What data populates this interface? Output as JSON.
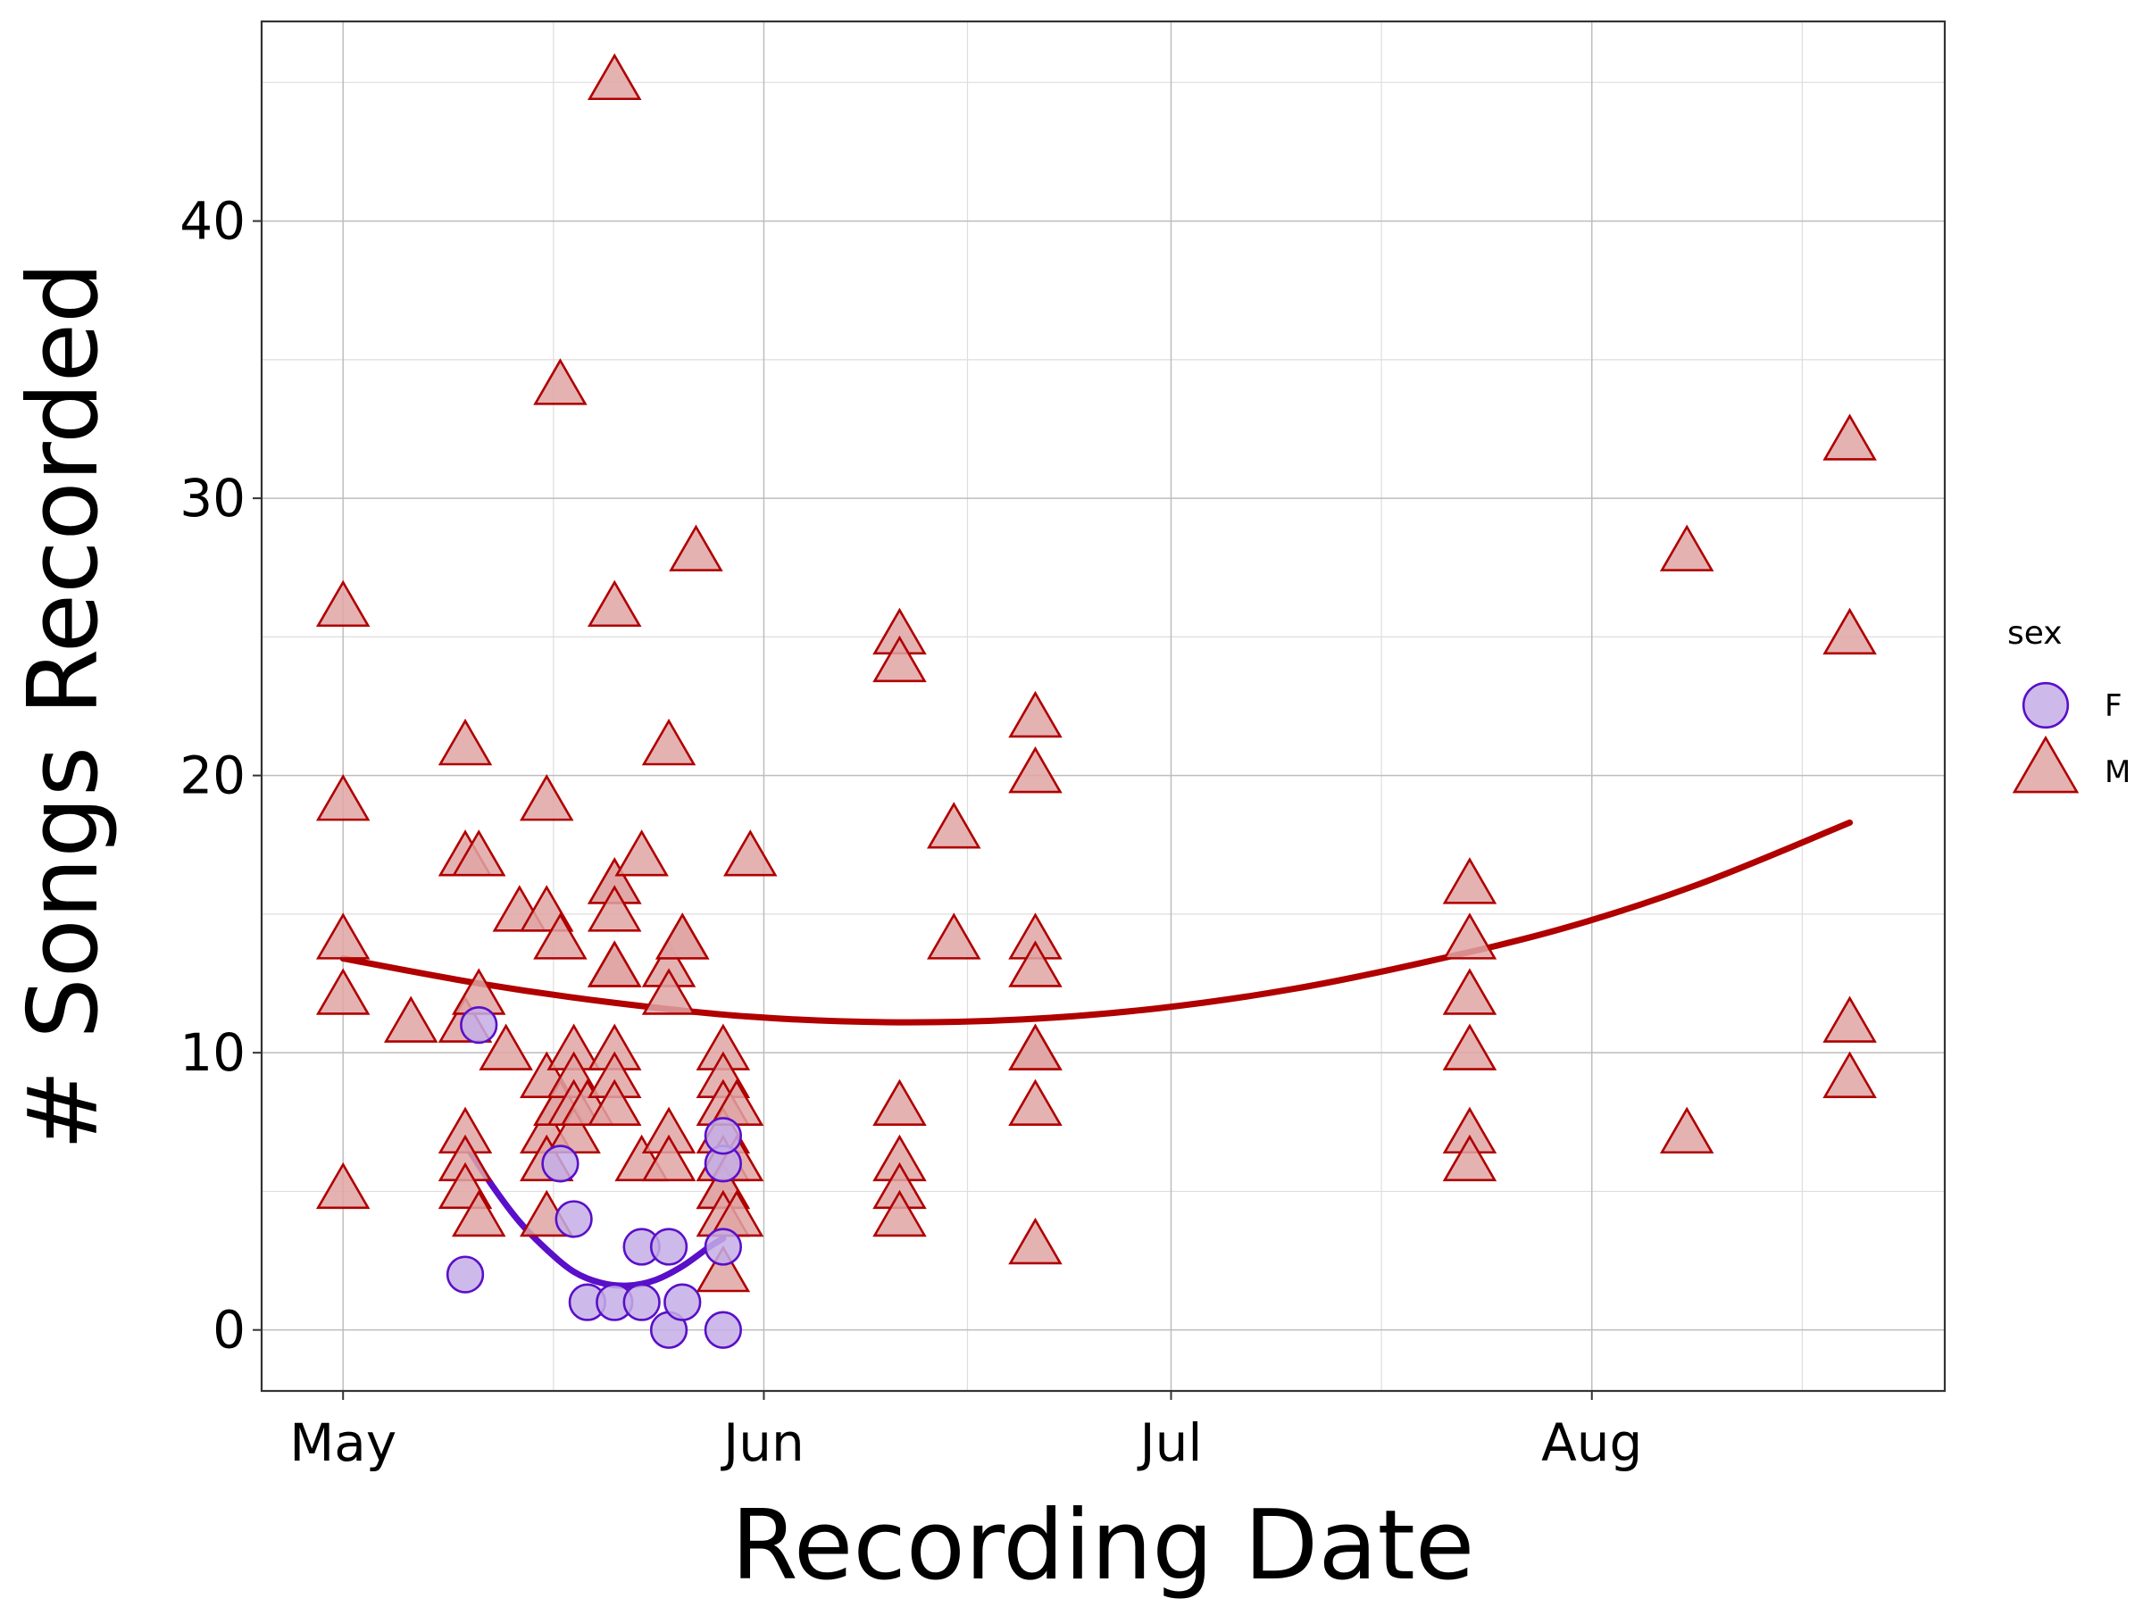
{
  "chart_data": {
    "type": "scatter",
    "xlabel": "Recording Date",
    "ylabel": "# Songs Recorded",
    "x_type": "date",
    "x_ticks": [
      {
        "date": "2021-05-01",
        "label": "May"
      },
      {
        "date": "2021-06-01",
        "label": "Jun"
      },
      {
        "date": "2021-07-01",
        "label": "Jul"
      },
      {
        "date": "2021-08-01",
        "label": "Aug"
      }
    ],
    "xlim": [
      "2021-04-25",
      "2021-08-27"
    ],
    "y_ticks": [
      0,
      10,
      20,
      30,
      40
    ],
    "ylim": [
      -2.2,
      47.2
    ],
    "grid": true,
    "legend": {
      "title": "sex",
      "position": "right"
    },
    "series": [
      {
        "name": "F",
        "color": "#5a0fc8",
        "fill": "#c4aee6",
        "shape": "circle",
        "points": [
          {
            "x": "2021-05-10",
            "y": 2
          },
          {
            "x": "2021-05-11",
            "y": 11
          },
          {
            "x": "2021-05-17",
            "y": 6
          },
          {
            "x": "2021-05-18",
            "y": 4
          },
          {
            "x": "2021-05-19",
            "y": 1
          },
          {
            "x": "2021-05-21",
            "y": 1
          },
          {
            "x": "2021-05-23",
            "y": 1
          },
          {
            "x": "2021-05-23",
            "y": 3
          },
          {
            "x": "2021-05-25",
            "y": 0
          },
          {
            "x": "2021-05-25",
            "y": 3
          },
          {
            "x": "2021-05-26",
            "y": 1
          },
          {
            "x": "2021-05-29",
            "y": 0
          },
          {
            "x": "2021-05-29",
            "y": 3
          },
          {
            "x": "2021-05-29",
            "y": 6
          },
          {
            "x": "2021-05-29",
            "y": 7
          }
        ],
        "trend": [
          {
            "x": "2021-05-10",
            "y": 6.7
          },
          {
            "x": "2021-05-12",
            "y": 5.2
          },
          {
            "x": "2021-05-14",
            "y": 3.9
          },
          {
            "x": "2021-05-16",
            "y": 2.9
          },
          {
            "x": "2021-05-18",
            "y": 2.1
          },
          {
            "x": "2021-05-20",
            "y": 1.7
          },
          {
            "x": "2021-05-22",
            "y": 1.6
          },
          {
            "x": "2021-05-24",
            "y": 1.8
          },
          {
            "x": "2021-05-26",
            "y": 2.3
          },
          {
            "x": "2021-05-28",
            "y": 3.0
          },
          {
            "x": "2021-05-29",
            "y": 3.3
          }
        ]
      },
      {
        "name": "M",
        "color": "#b00000",
        "fill": "#e0a4a4",
        "shape": "triangle",
        "points": [
          {
            "x": "2021-05-01",
            "y": 26
          },
          {
            "x": "2021-05-01",
            "y": 19
          },
          {
            "x": "2021-05-01",
            "y": 14
          },
          {
            "x": "2021-05-01",
            "y": 12
          },
          {
            "x": "2021-05-01",
            "y": 5
          },
          {
            "x": "2021-05-06",
            "y": 11
          },
          {
            "x": "2021-05-10",
            "y": 21
          },
          {
            "x": "2021-05-10",
            "y": 17
          },
          {
            "x": "2021-05-10",
            "y": 11
          },
          {
            "x": "2021-05-10",
            "y": 7
          },
          {
            "x": "2021-05-10",
            "y": 6
          },
          {
            "x": "2021-05-10",
            "y": 5
          },
          {
            "x": "2021-05-11",
            "y": 17
          },
          {
            "x": "2021-05-11",
            "y": 12
          },
          {
            "x": "2021-05-11",
            "y": 4
          },
          {
            "x": "2021-05-13",
            "y": 10
          },
          {
            "x": "2021-05-14",
            "y": 15
          },
          {
            "x": "2021-05-16",
            "y": 19
          },
          {
            "x": "2021-05-16",
            "y": 15
          },
          {
            "x": "2021-05-16",
            "y": 9
          },
          {
            "x": "2021-05-16",
            "y": 7
          },
          {
            "x": "2021-05-16",
            "y": 6
          },
          {
            "x": "2021-05-16",
            "y": 4
          },
          {
            "x": "2021-05-17",
            "y": 34
          },
          {
            "x": "2021-05-17",
            "y": 14
          },
          {
            "x": "2021-05-17",
            "y": 8
          },
          {
            "x": "2021-05-17",
            "y": 8
          },
          {
            "x": "2021-05-18",
            "y": 10
          },
          {
            "x": "2021-05-18",
            "y": 9
          },
          {
            "x": "2021-05-18",
            "y": 8
          },
          {
            "x": "2021-05-18",
            "y": 7
          },
          {
            "x": "2021-05-19",
            "y": 8
          },
          {
            "x": "2021-05-21",
            "y": 45
          },
          {
            "x": "2021-05-21",
            "y": 26
          },
          {
            "x": "2021-05-21",
            "y": 16
          },
          {
            "x": "2021-05-21",
            "y": 16
          },
          {
            "x": "2021-05-21",
            "y": 15
          },
          {
            "x": "2021-05-21",
            "y": 13
          },
          {
            "x": "2021-05-21",
            "y": 13
          },
          {
            "x": "2021-05-21",
            "y": 10
          },
          {
            "x": "2021-05-21",
            "y": 9
          },
          {
            "x": "2021-05-21",
            "y": 8
          },
          {
            "x": "2021-05-23",
            "y": 17
          },
          {
            "x": "2021-05-23",
            "y": 6
          },
          {
            "x": "2021-05-25",
            "y": 21
          },
          {
            "x": "2021-05-25",
            "y": 13
          },
          {
            "x": "2021-05-25",
            "y": 12
          },
          {
            "x": "2021-05-25",
            "y": 7
          },
          {
            "x": "2021-05-25",
            "y": 6
          },
          {
            "x": "2021-05-26",
            "y": 14
          },
          {
            "x": "2021-05-26",
            "y": 14
          },
          {
            "x": "2021-05-27",
            "y": 28
          },
          {
            "x": "2021-05-29",
            "y": 10
          },
          {
            "x": "2021-05-29",
            "y": 9
          },
          {
            "x": "2021-05-29",
            "y": 8
          },
          {
            "x": "2021-05-29",
            "y": 7
          },
          {
            "x": "2021-05-29",
            "y": 6
          },
          {
            "x": "2021-05-29",
            "y": 5
          },
          {
            "x": "2021-05-29",
            "y": 5
          },
          {
            "x": "2021-05-29",
            "y": 4
          },
          {
            "x": "2021-05-29",
            "y": 2
          },
          {
            "x": "2021-05-30",
            "y": 8
          },
          {
            "x": "2021-05-30",
            "y": 6
          },
          {
            "x": "2021-05-30",
            "y": 4
          },
          {
            "x": "2021-05-31",
            "y": 17
          },
          {
            "x": "2021-06-11",
            "y": 25
          },
          {
            "x": "2021-06-11",
            "y": 24
          },
          {
            "x": "2021-06-11",
            "y": 8
          },
          {
            "x": "2021-06-11",
            "y": 6
          },
          {
            "x": "2021-06-11",
            "y": 5
          },
          {
            "x": "2021-06-11",
            "y": 4
          },
          {
            "x": "2021-06-15",
            "y": 18
          },
          {
            "x": "2021-06-15",
            "y": 14
          },
          {
            "x": "2021-06-21",
            "y": 22
          },
          {
            "x": "2021-06-21",
            "y": 20
          },
          {
            "x": "2021-06-21",
            "y": 14
          },
          {
            "x": "2021-06-21",
            "y": 13
          },
          {
            "x": "2021-06-21",
            "y": 10
          },
          {
            "x": "2021-06-21",
            "y": 10
          },
          {
            "x": "2021-06-21",
            "y": 8
          },
          {
            "x": "2021-06-21",
            "y": 3
          },
          {
            "x": "2021-07-23",
            "y": 16
          },
          {
            "x": "2021-07-23",
            "y": 14
          },
          {
            "x": "2021-07-23",
            "y": 12
          },
          {
            "x": "2021-07-23",
            "y": 10
          },
          {
            "x": "2021-07-23",
            "y": 7
          },
          {
            "x": "2021-07-23",
            "y": 6
          },
          {
            "x": "2021-08-08",
            "y": 28
          },
          {
            "x": "2021-08-08",
            "y": 7
          },
          {
            "x": "2021-08-20",
            "y": 32
          },
          {
            "x": "2021-08-20",
            "y": 25
          },
          {
            "x": "2021-08-20",
            "y": 11
          },
          {
            "x": "2021-08-20",
            "y": 9
          }
        ],
        "trend": [
          {
            "x": "2021-05-01",
            "y": 13.4
          },
          {
            "x": "2021-05-11",
            "y": 12.5
          },
          {
            "x": "2021-05-21",
            "y": 11.8
          },
          {
            "x": "2021-05-31",
            "y": 11.3
          },
          {
            "x": "2021-06-10",
            "y": 11.1
          },
          {
            "x": "2021-06-20",
            "y": 11.2
          },
          {
            "x": "2021-06-30",
            "y": 11.6
          },
          {
            "x": "2021-07-10",
            "y": 12.3
          },
          {
            "x": "2021-07-20",
            "y": 13.3
          },
          {
            "x": "2021-07-30",
            "y": 14.5
          },
          {
            "x": "2021-08-09",
            "y": 16.1
          },
          {
            "x": "2021-08-20",
            "y": 18.3
          }
        ]
      }
    ]
  }
}
